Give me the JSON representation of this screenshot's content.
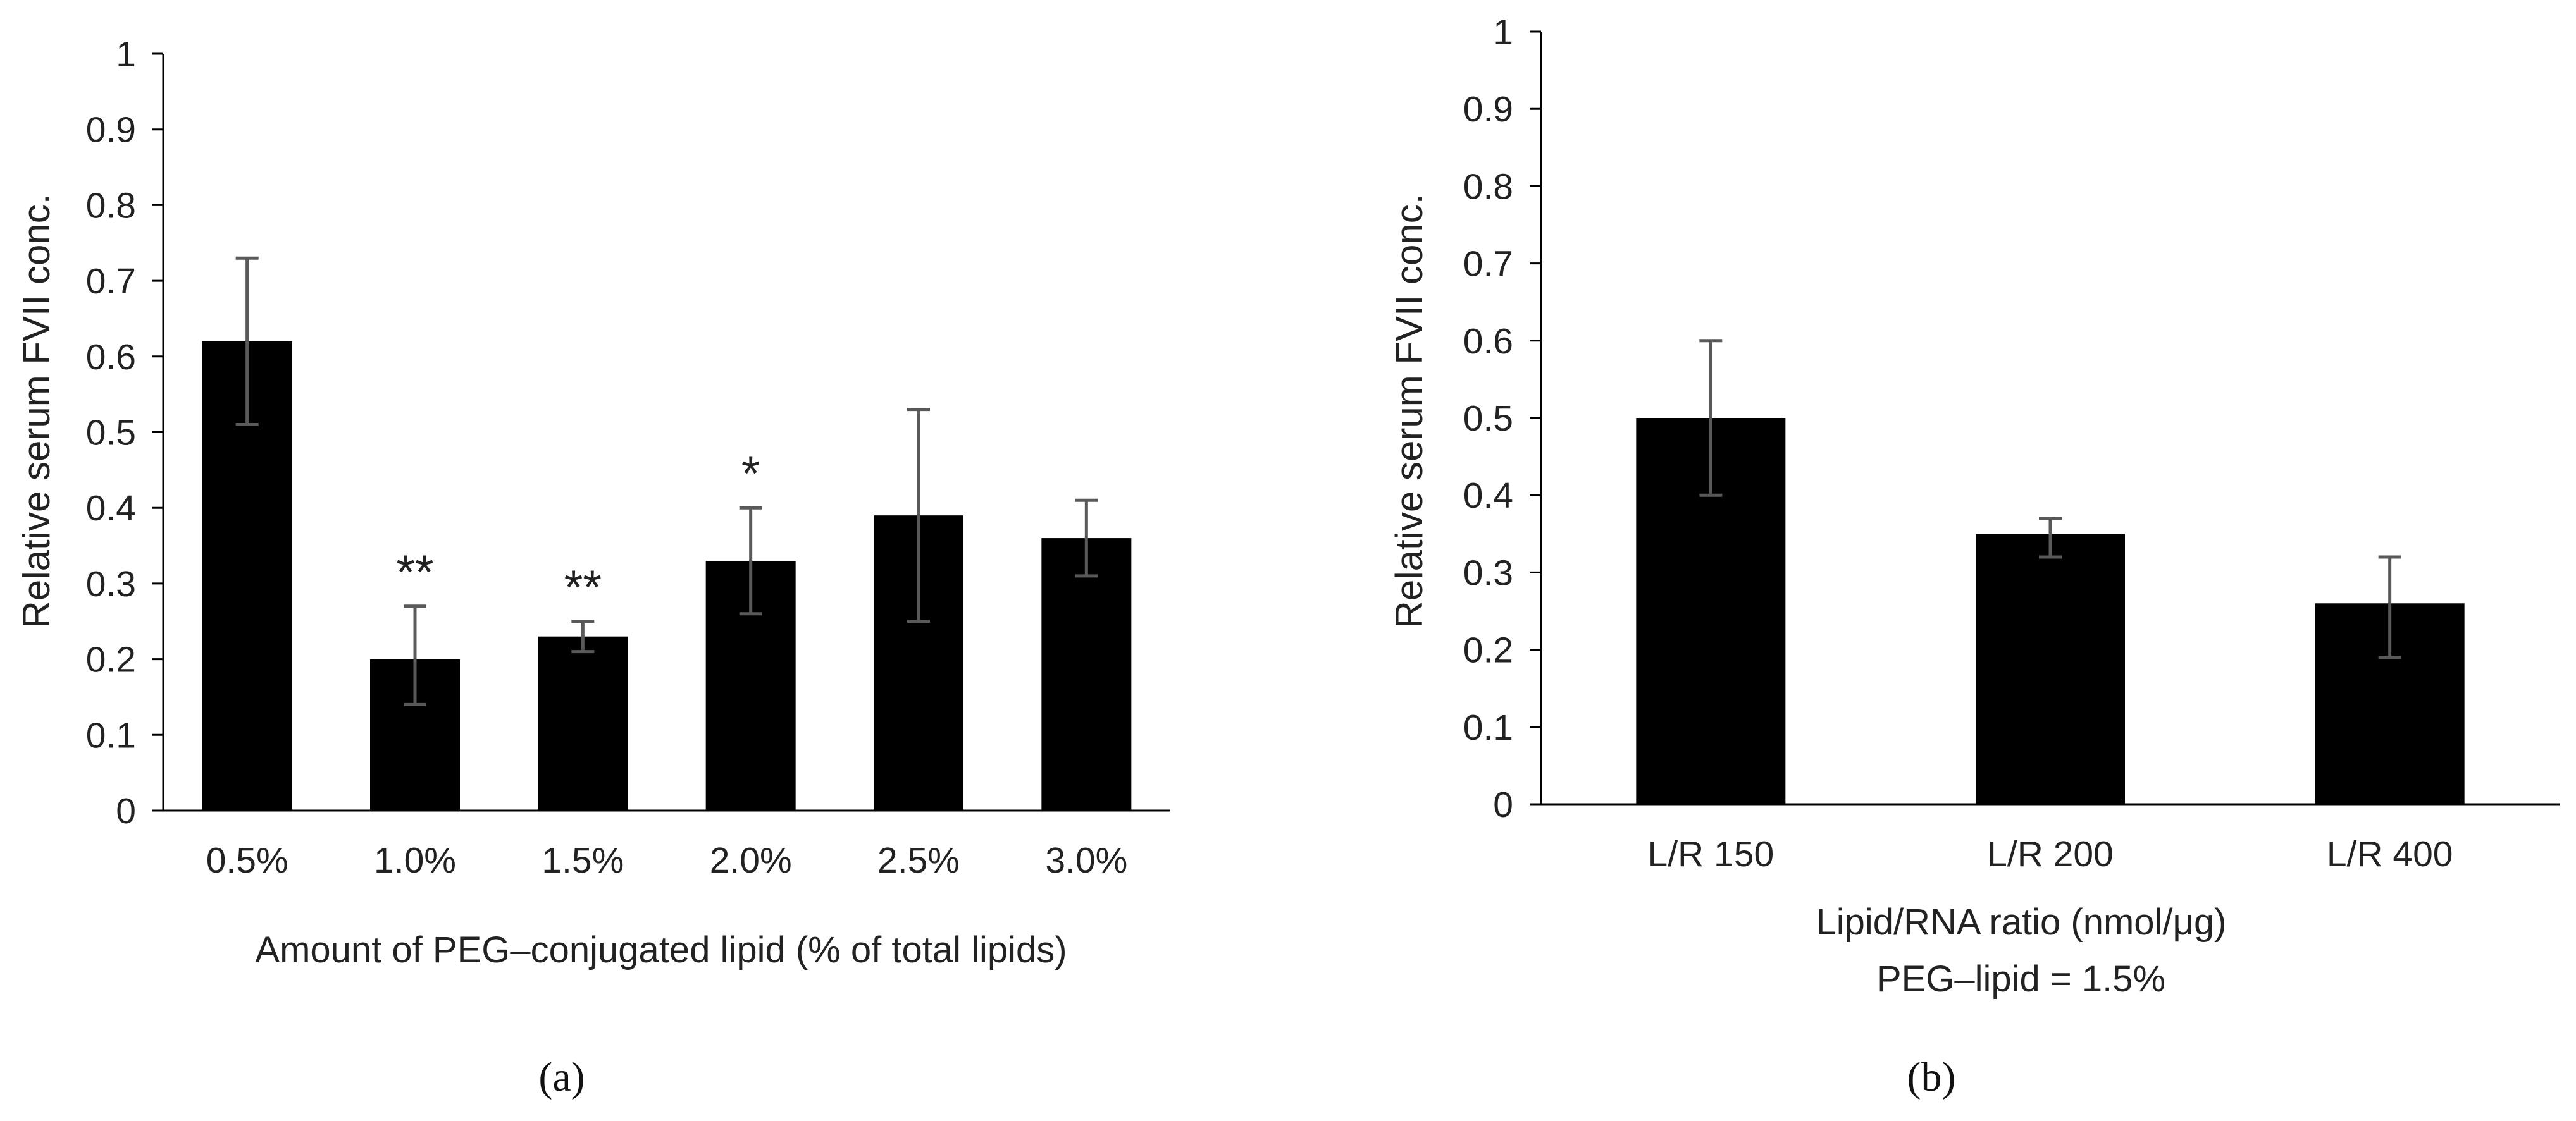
{
  "colors": {
    "bar": "#000000",
    "axis": "#000000",
    "error": "#595959",
    "text": "#222222"
  },
  "chart_data": [
    {
      "type": "bar",
      "panel_label": "(a)",
      "ylabel": "Relative serum FVII conc.",
      "xlabel": "Amount of PEG–conjugated lipid (% of total lipids)",
      "ylim": [
        0,
        1
      ],
      "yticks": [
        "0",
        "0.1",
        "0.2",
        "0.3",
        "0.4",
        "0.5",
        "0.6",
        "0.7",
        "0.8",
        "0.9",
        "1"
      ],
      "categories": [
        "0.5%",
        "1.0%",
        "1.5%",
        "2.0%",
        "2.5%",
        "3.0%"
      ],
      "values": [
        0.62,
        0.2,
        0.23,
        0.33,
        0.39,
        0.36
      ],
      "error_low": [
        0.51,
        0.14,
        0.21,
        0.26,
        0.25,
        0.31
      ],
      "error_high": [
        0.73,
        0.27,
        0.25,
        0.4,
        0.53,
        0.41
      ],
      "annotations": [
        "",
        "**",
        "**",
        "*",
        "",
        ""
      ],
      "grid": false,
      "legend": "none"
    },
    {
      "type": "bar",
      "panel_label": "(b)",
      "ylabel": "Relative serum FVII conc.",
      "xlabel": "Lipid/RNA ratio (nmol/μg)",
      "xlabel2": "PEG–lipid = 1.5%",
      "ylim": [
        0,
        1
      ],
      "yticks": [
        "0",
        "0.1",
        "0.2",
        "0.3",
        "0.4",
        "0.5",
        "0.6",
        "0.7",
        "0.8",
        "0.9",
        "1"
      ],
      "categories": [
        "L/R 150",
        "L/R 200",
        "L/R 400"
      ],
      "values": [
        0.5,
        0.35,
        0.26
      ],
      "error_low": [
        0.4,
        0.32,
        0.19
      ],
      "error_high": [
        0.6,
        0.37,
        0.32
      ],
      "annotations": [
        "",
        "",
        ""
      ],
      "grid": false,
      "legend": "none"
    }
  ]
}
